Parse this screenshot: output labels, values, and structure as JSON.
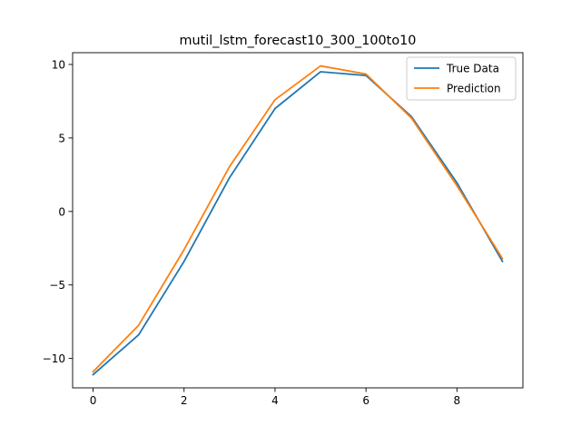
{
  "chart_data": {
    "type": "line",
    "title": "mutil_lstm_forecast10_300_100to10",
    "xlabel": "",
    "ylabel": "",
    "xlim": [
      -0.45,
      9.45
    ],
    "ylim": [
      -12.0,
      10.8
    ],
    "xticks": [
      0,
      2,
      4,
      6,
      8
    ],
    "xtick_labels": [
      "0",
      "2",
      "4",
      "6",
      "8"
    ],
    "yticks": [
      -10,
      -5,
      0,
      5,
      10
    ],
    "ytick_labels": [
      "−10",
      "−5",
      "0",
      "5",
      "10"
    ],
    "grid": false,
    "legend_position": "top-right",
    "x": [
      0,
      1,
      2,
      3,
      4,
      5,
      6,
      7,
      8,
      9
    ],
    "series": [
      {
        "name": "True Data",
        "color": "#1f77b4",
        "values": [
          -11.1,
          -8.4,
          -3.4,
          2.3,
          7.0,
          9.5,
          9.25,
          6.45,
          1.95,
          -3.4
        ]
      },
      {
        "name": "Prediction",
        "color": "#ff7f0e",
        "values": [
          -10.9,
          -7.75,
          -2.6,
          3.05,
          7.6,
          9.9,
          9.35,
          6.35,
          1.75,
          -3.2
        ]
      }
    ]
  }
}
